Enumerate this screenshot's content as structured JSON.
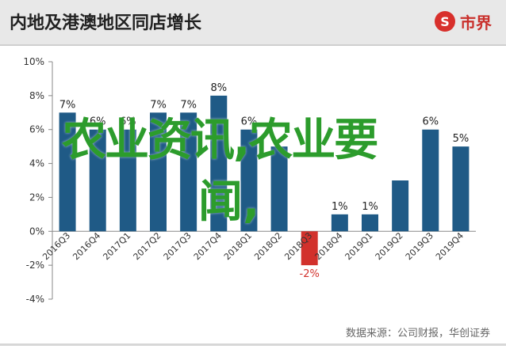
{
  "header": {
    "title": "内地及港澳地区同店增长",
    "logo_mark": "S",
    "logo_text": "市界"
  },
  "source_text": "数据来源：公司财报，华创证券",
  "overlay": {
    "line1": "农业资讯,农业要",
    "line2": "闻,"
  },
  "colors": {
    "bar": "#1f5a86",
    "negative_bar": "#d2312c",
    "negative_label": "#d2312c",
    "overlay_text": "#2c9c2c"
  },
  "chart_data": {
    "type": "bar",
    "categories": [
      "2016Q3",
      "2016Q4",
      "2017Q1",
      "2017Q2",
      "2017Q3",
      "2017Q4",
      "2018Q1",
      "2018Q2",
      "2018Q3",
      "2018Q4",
      "2019Q1",
      "2019Q2",
      "2019Q3",
      "2019Q4"
    ],
    "values": [
      7,
      6,
      6,
      7,
      7,
      8,
      6,
      5,
      -2,
      1,
      1,
      3,
      6,
      5
    ],
    "value_labels": [
      "7%",
      "6%",
      "6%",
      "7%",
      "7%",
      "8%",
      "6%",
      "",
      "-2%",
      "1%",
      "1%",
      "",
      "6%",
      "5%"
    ],
    "ylim": [
      -4,
      10
    ],
    "yticks": [
      -4,
      -2,
      0,
      2,
      4,
      6,
      8,
      10
    ],
    "ytick_labels": [
      "-4%",
      "-2%",
      "0%",
      "2%",
      "4%",
      "6%",
      "8%",
      "10%"
    ],
    "title": "",
    "xlabel": "",
    "ylabel": ""
  }
}
